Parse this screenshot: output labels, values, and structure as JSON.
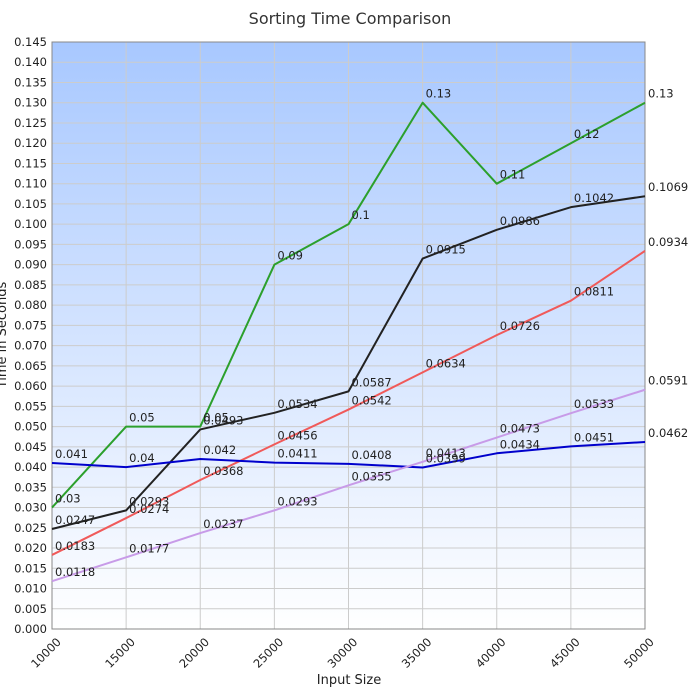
{
  "chart_data": {
    "type": "line",
    "title": "Sorting Time Comparison",
    "xlabel": "Input Size",
    "ylabel": "Time in Seconds",
    "x": [
      10000,
      15000,
      20000,
      25000,
      30000,
      35000,
      40000,
      45000,
      50000
    ],
    "xlim": [
      10000,
      50000
    ],
    "ylim": [
      0,
      0.145
    ],
    "y_step": 0.005,
    "grid": true,
    "background_gradient": [
      "#a8c8ff",
      "#ffffff"
    ],
    "series": [
      {
        "color": "#2ca02c",
        "values": [
          0.03,
          0.05,
          0.05,
          0.09,
          0.1,
          0.13,
          0.11,
          0.12,
          0.13
        ],
        "labels": [
          "0.03",
          "0.05",
          "0.05",
          "0.09",
          "0.1",
          "0.13",
          "0.11",
          "0.12",
          "0.13"
        ]
      },
      {
        "color": "#222222",
        "values": [
          0.0247,
          0.0293,
          0.0493,
          0.0534,
          0.0587,
          0.0915,
          0.0986,
          0.1042,
          0.1069
        ],
        "labels": [
          "0.0247",
          "0.0293",
          "0.0493",
          "0.0534",
          "0.0587",
          "0.0915",
          "0.0986",
          "0.1042",
          "0.1069"
        ]
      },
      {
        "color": "#f05a5a",
        "values": [
          0.0183,
          0.0274,
          0.0368,
          0.0456,
          0.0542,
          0.0634,
          0.0726,
          0.0811,
          0.0934
        ],
        "labels": [
          "0.0183",
          "0.0274",
          "0.0368",
          "0.0456",
          "0.0542",
          "0.0634",
          "0.0726",
          "0.0811",
          "0.0934"
        ]
      },
      {
        "color": "#0000cc",
        "values": [
          0.041,
          0.04,
          0.042,
          0.0411,
          0.0408,
          0.0399,
          0.0434,
          0.0451,
          0.0462
        ],
        "labels": [
          "0.041",
          "0.04",
          "0.042",
          "0.0411",
          "0.0408",
          "0.0399",
          "0.0434",
          "0.0451",
          "0.0462"
        ]
      },
      {
        "color": "#c89be8",
        "values": [
          0.0118,
          0.0177,
          0.0237,
          0.0293,
          0.0355,
          0.0413,
          0.0473,
          0.0533,
          0.0591
        ],
        "labels": [
          "0.0118",
          "0.0177",
          "0.0237",
          "0.0293",
          "0.0355",
          "0.0413",
          "0.0473",
          "0.0533",
          "0.0591"
        ]
      }
    ]
  }
}
